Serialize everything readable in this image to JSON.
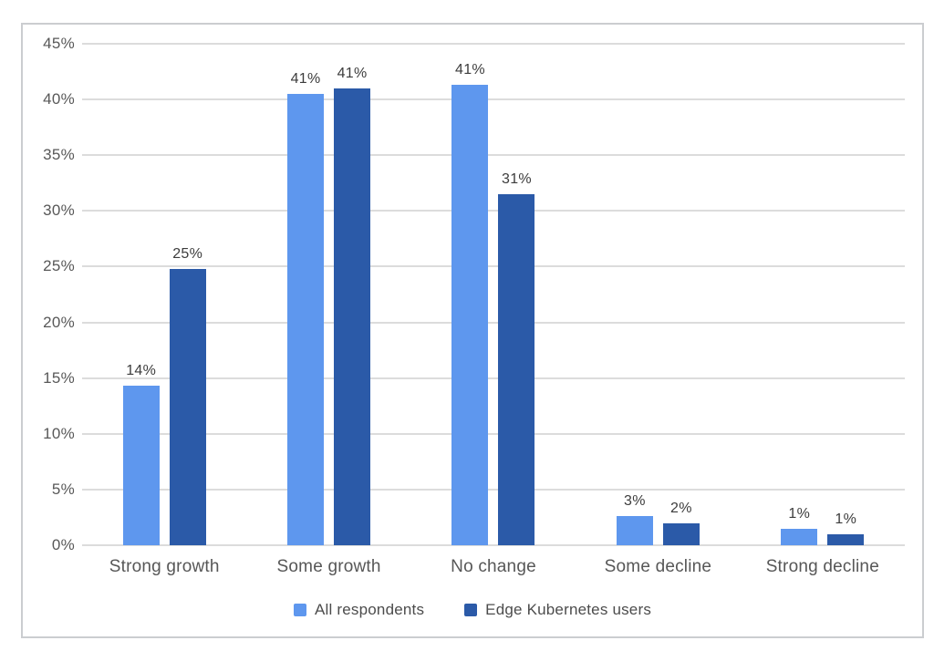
{
  "chart_data": {
    "type": "bar",
    "categories": [
      "Strong growth",
      "Some growth",
      "No change",
      "Some decline",
      "Strong decline"
    ],
    "series": [
      {
        "name": "All respondents",
        "color": "#5e97ee",
        "values": [
          14.3,
          40.5,
          41.3,
          2.6,
          1.5
        ],
        "labels": [
          "14%",
          "41%",
          "41%",
          "3%",
          "1%"
        ]
      },
      {
        "name": "Edge Kubernetes users",
        "color": "#2b5aa8",
        "values": [
          24.8,
          41.0,
          31.5,
          2.0,
          1.0
        ],
        "labels": [
          "25%",
          "41%",
          "31%",
          "2%",
          "1%"
        ]
      }
    ],
    "y_ticks": [
      "0%",
      "5%",
      "10%",
      "15%",
      "20%",
      "25%",
      "30%",
      "35%",
      "40%",
      "45%"
    ],
    "ylim": [
      0,
      45
    ],
    "grid": true,
    "legend_position": "bottom",
    "colors": {
      "gridline": "#dcdcdc",
      "frame_border": "#cbcdd0",
      "axis_text": "#585858",
      "data_label_text": "#3c3c3c"
    }
  }
}
